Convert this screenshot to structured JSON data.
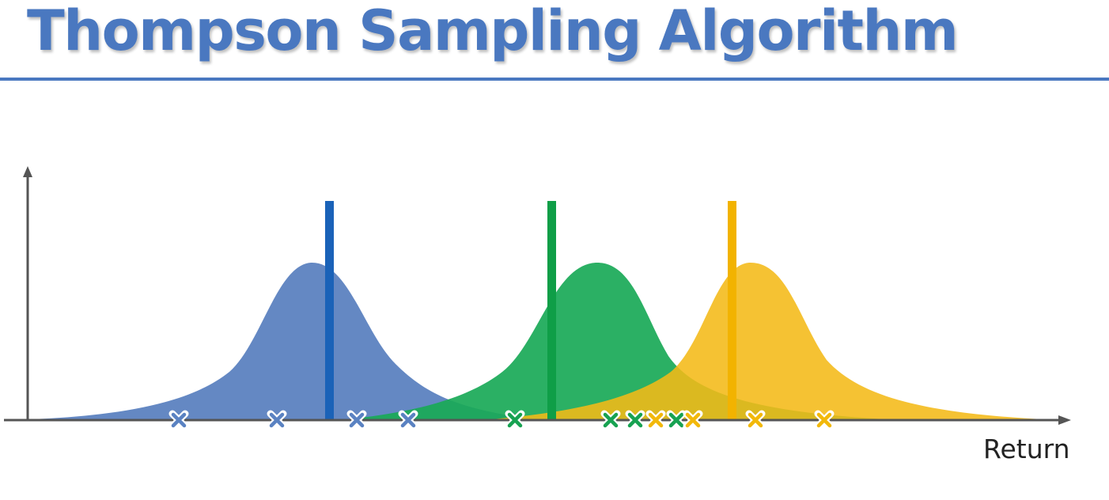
{
  "title": "Thompson Sampling Algorithm",
  "x_axis_label": "Return",
  "colors": {
    "title": "#4A78C0",
    "rule": "#4A78C0",
    "axis": "#555555",
    "marker_outline": "#ffffff"
  },
  "distributions": [
    {
      "id": "blue",
      "fill": "#4E78BB",
      "true_line": "#1A62B8",
      "marker": "#5A82C2"
    },
    {
      "id": "green",
      "fill": "#19A957",
      "true_line": "#0F9E47",
      "marker": "#17A251"
    },
    {
      "id": "yellow",
      "fill": "#F4B917",
      "true_line": "#F2B300",
      "marker": "#F2B80A"
    }
  ]
}
